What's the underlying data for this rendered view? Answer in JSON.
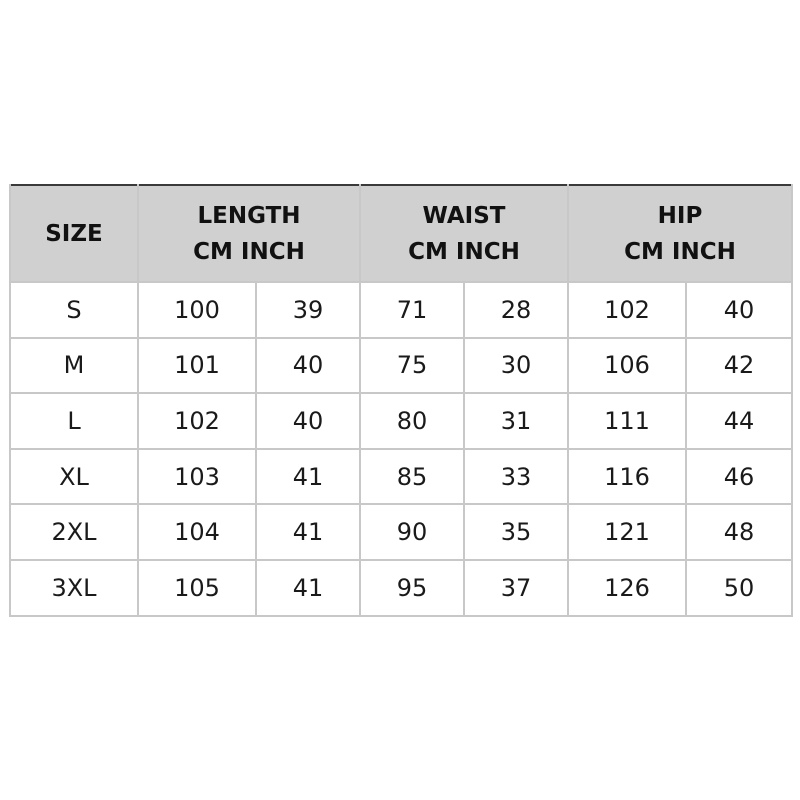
{
  "header": {
    "size": "SIZE",
    "groups": [
      {
        "name": "LENGTH",
        "units": "CM INCH"
      },
      {
        "name": "WAIST",
        "units": "CM INCH"
      },
      {
        "name": "HIP",
        "units": "CM INCH"
      }
    ]
  },
  "rows": [
    {
      "size": "S",
      "values": [
        "100",
        "39",
        "71",
        "28",
        "102",
        "40"
      ]
    },
    {
      "size": "M",
      "values": [
        "101",
        "40",
        "75",
        "30",
        "106",
        "42"
      ]
    },
    {
      "size": "L",
      "values": [
        "102",
        "40",
        "80",
        "31",
        "111",
        "44"
      ]
    },
    {
      "size": "XL",
      "values": [
        "103",
        "41",
        "85",
        "33",
        "116",
        "46"
      ]
    },
    {
      "size": "2XL",
      "values": [
        "104",
        "41",
        "90",
        "35",
        "121",
        "48"
      ]
    },
    {
      "size": "3XL",
      "values": [
        "105",
        "41",
        "95",
        "37",
        "126",
        "50"
      ]
    }
  ],
  "colors": {
    "header_bg": "#d0d0d0",
    "outer_border": "#3a3a3a",
    "inner_border": "#c8c8c8"
  }
}
